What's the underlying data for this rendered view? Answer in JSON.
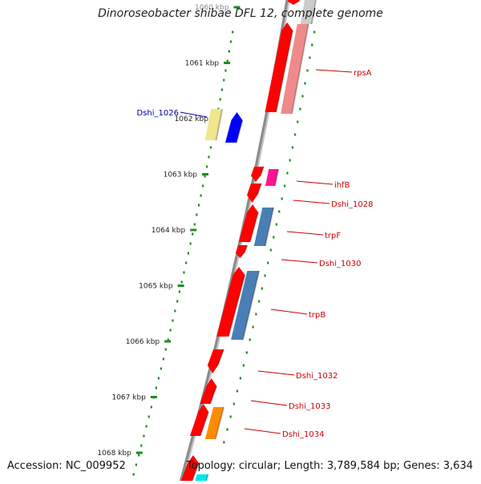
{
  "title": "Dinoroseobacter shibae DFL 12, complete genome",
  "footer": {
    "accession": "Accession: NC_009952",
    "stats": "Topology: circular; Length: 3,789,584 bp; Genes: 3,634"
  },
  "scale_labels": [
    "1060 kbp",
    "1061 kbp",
    "1062 kbp",
    "1063 kbp",
    "1064 kbp",
    "1065 kbp",
    "1066 kbp",
    "1067 kbp",
    "1068 kbp"
  ],
  "genes": [
    {
      "label": "rpsA",
      "color": "#cc0000"
    },
    {
      "label": "Dshi_1026",
      "color": "#000099"
    },
    {
      "label": "ihfB",
      "color": "#cc0000"
    },
    {
      "label": "Dshi_1028",
      "color": "#cc0000"
    },
    {
      "label": "trpF",
      "color": "#cc0000"
    },
    {
      "label": "Dshi_1030",
      "color": "#cc0000"
    },
    {
      "label": "trpB",
      "color": "#cc0000"
    },
    {
      "label": "Dshi_1032",
      "color": "#cc0000"
    },
    {
      "label": "Dshi_1033",
      "color": "#cc0000"
    },
    {
      "label": "Dshi_1034",
      "color": "#cc0000"
    }
  ],
  "colors": {
    "cds": "#ff0000",
    "cds_light": "#f08a8a",
    "backbone": "#8c8c8c",
    "ruler": "#1e8c1e",
    "steelblue": "#4a7fb5",
    "orange": "#ff8c00",
    "magenta": "#ff1493",
    "khaki": "#f0e68c",
    "blue": "#0000ff",
    "cyan": "#00e5ee"
  }
}
